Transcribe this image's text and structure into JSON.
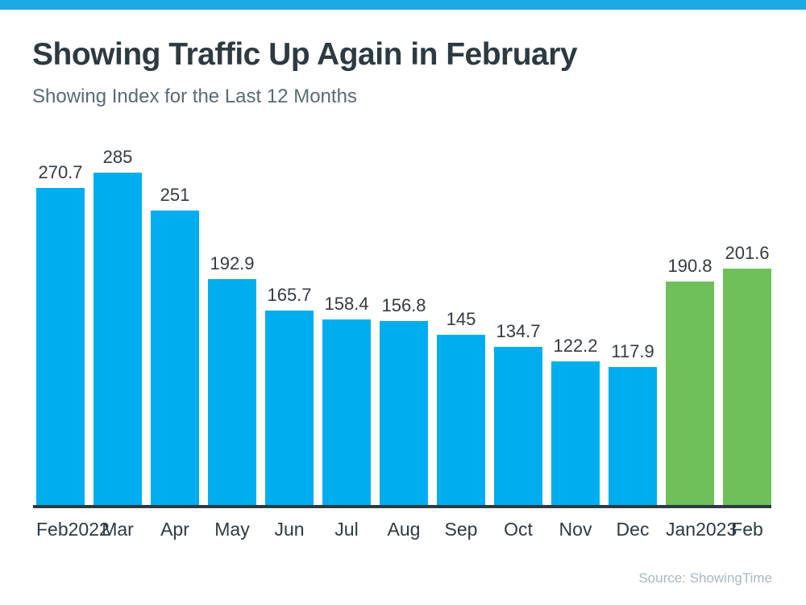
{
  "page": {
    "topbar_color": "#1CAAE3",
    "background": "#FFFFFF"
  },
  "header": {
    "title": "Showing Traffic Up Again in February",
    "subtitle": "Showing Index for the Last 12 Months"
  },
  "source": {
    "label": "Source: ShowingTime"
  },
  "chart_data": {
    "type": "bar",
    "title": "Showing Traffic Up Again in February",
    "subtitle": "Showing Index for the Last 12 Months",
    "ylim": [
      0,
      300
    ],
    "grid": false,
    "value_labels_position": "above-bars",
    "axis_line_color": "#2E3A42",
    "colors": {
      "default": "#00AEEF",
      "highlight": "#6FBF5B"
    },
    "categories": [
      "Feb",
      "Mar",
      "Apr",
      "May",
      "Jun",
      "Jul",
      "Aug",
      "Sep",
      "Oct",
      "Nov",
      "Dec",
      "Jan",
      "Feb"
    ],
    "values": [
      270.7,
      285,
      251,
      192.9,
      165.7,
      158.4,
      156.8,
      145,
      134.7,
      122.2,
      117.9,
      190.8,
      201.6
    ],
    "bars": [
      {
        "month": "Feb",
        "year": "2022",
        "value": 270.7,
        "label": "270.7",
        "color": "#00AEEF"
      },
      {
        "month": "Mar",
        "year": "",
        "value": 285,
        "label": "285",
        "color": "#00AEEF"
      },
      {
        "month": "Apr",
        "year": "",
        "value": 251,
        "label": "251",
        "color": "#00AEEF"
      },
      {
        "month": "May",
        "year": "",
        "value": 192.9,
        "label": "192.9",
        "color": "#00AEEF"
      },
      {
        "month": "Jun",
        "year": "",
        "value": 165.7,
        "label": "165.7",
        "color": "#00AEEF"
      },
      {
        "month": "Jul",
        "year": "",
        "value": 158.4,
        "label": "158.4",
        "color": "#00AEEF"
      },
      {
        "month": "Aug",
        "year": "",
        "value": 156.8,
        "label": "156.8",
        "color": "#00AEEF"
      },
      {
        "month": "Sep",
        "year": "",
        "value": 145,
        "label": "145",
        "color": "#00AEEF"
      },
      {
        "month": "Oct",
        "year": "",
        "value": 134.7,
        "label": "134.7",
        "color": "#00AEEF"
      },
      {
        "month": "Nov",
        "year": "",
        "value": 122.2,
        "label": "122.2",
        "color": "#00AEEF"
      },
      {
        "month": "Dec",
        "year": "",
        "value": 117.9,
        "label": "117.9",
        "color": "#00AEEF"
      },
      {
        "month": "Jan",
        "year": "2023",
        "value": 190.8,
        "label": "190.8",
        "color": "#6FBF5B"
      },
      {
        "month": "Feb",
        "year": "",
        "value": 201.6,
        "label": "201.6",
        "color": "#6FBF5B"
      }
    ]
  }
}
